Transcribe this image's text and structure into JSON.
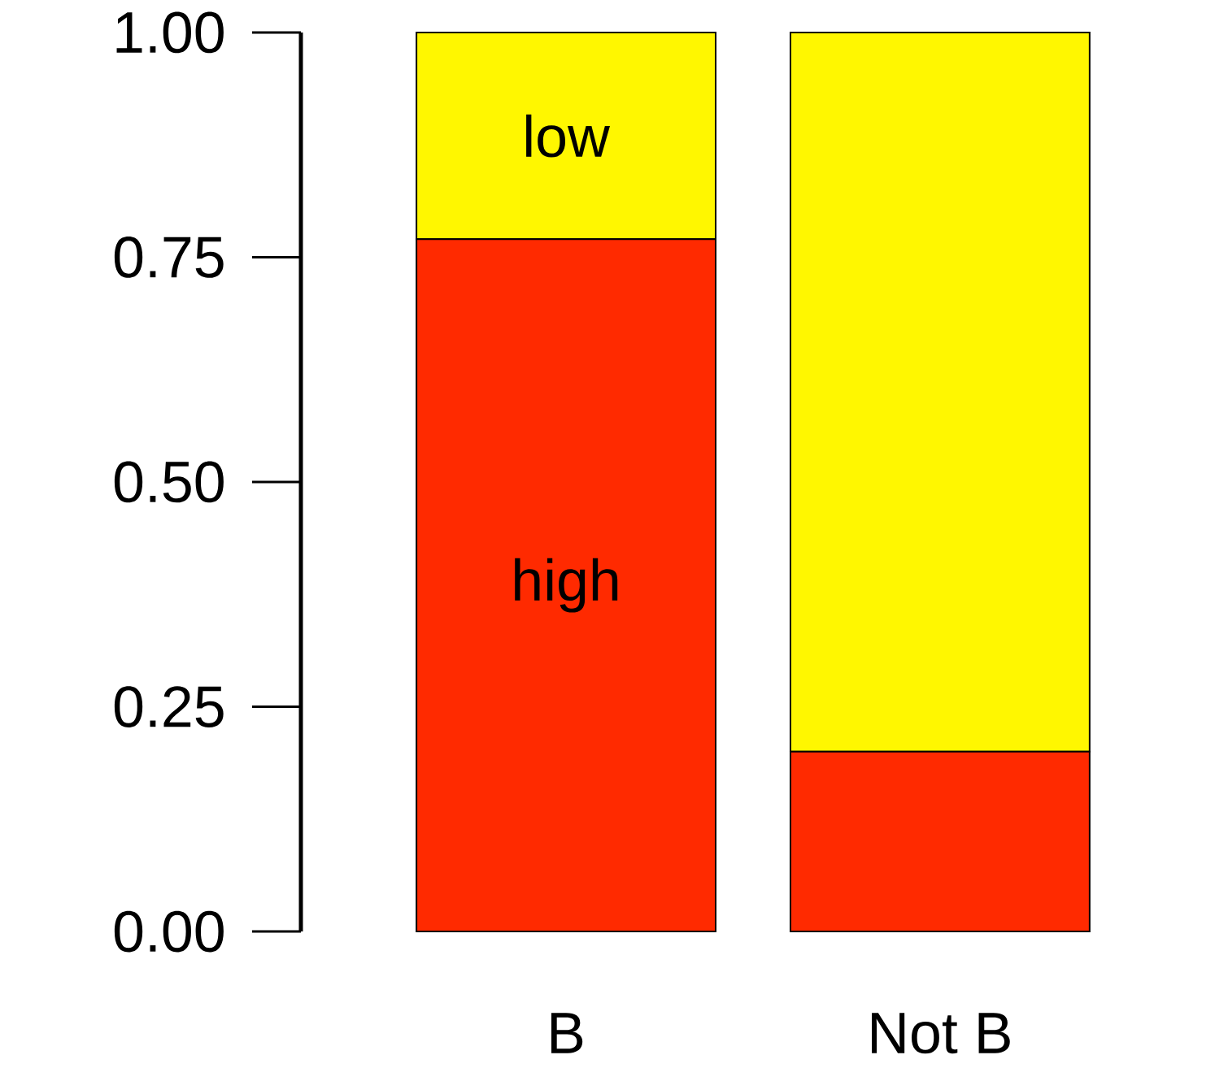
{
  "chart_data": {
    "type": "bar",
    "stacked": true,
    "categories": [
      "B",
      "Not B"
    ],
    "series": [
      {
        "name": "high",
        "color": "#ff2a00",
        "values": [
          0.77,
          0.2
        ]
      },
      {
        "name": "low",
        "color": "#fff700",
        "values": [
          0.23,
          0.8
        ]
      }
    ],
    "ylim": [
      0,
      1
    ],
    "yticks": [
      {
        "value": 0,
        "label": "0.00"
      },
      {
        "value": 0.25,
        "label": "0.25"
      },
      {
        "value": 0.5,
        "label": "0.50"
      },
      {
        "value": 0.75,
        "label": "0.75"
      },
      {
        "value": 1,
        "label": "1.00"
      }
    ],
    "grid": false,
    "legend": false
  }
}
